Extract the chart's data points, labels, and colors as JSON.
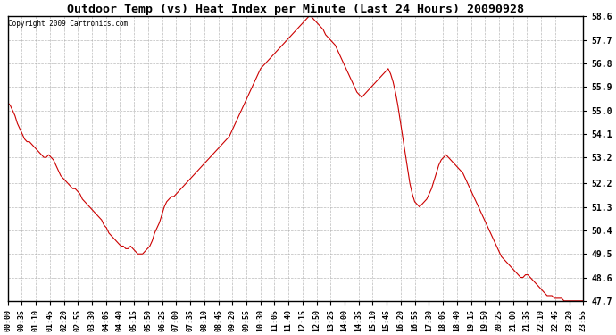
{
  "title": "Outdoor Temp (vs) Heat Index per Minute (Last 24 Hours) 20090928",
  "copyright": "Copyright 2009 Cartronics.com",
  "line_color": "#cc0000",
  "bg_color": "#ffffff",
  "grid_color": "#aaaaaa",
  "yticks": [
    47.7,
    48.6,
    49.5,
    50.4,
    51.3,
    52.2,
    53.2,
    54.1,
    55.0,
    55.9,
    56.8,
    57.7,
    58.6
  ],
  "ymin": 47.7,
  "ymax": 58.6,
  "xtick_labels": [
    "00:00",
    "00:35",
    "01:10",
    "01:45",
    "02:20",
    "02:55",
    "03:30",
    "04:05",
    "04:40",
    "05:15",
    "05:50",
    "06:25",
    "07:00",
    "07:35",
    "08:10",
    "08:45",
    "09:20",
    "09:55",
    "10:30",
    "11:05",
    "11:40",
    "12:15",
    "12:50",
    "13:25",
    "14:00",
    "14:35",
    "15:10",
    "15:45",
    "16:20",
    "16:55",
    "17:30",
    "18:05",
    "18:40",
    "19:15",
    "19:50",
    "20:25",
    "21:00",
    "21:35",
    "22:10",
    "22:45",
    "23:20",
    "23:55"
  ],
  "curve": [
    55.3,
    55.2,
    55.0,
    54.8,
    54.5,
    54.3,
    54.1,
    53.9,
    53.8,
    53.8,
    53.7,
    53.6,
    53.5,
    53.4,
    53.3,
    53.2,
    53.2,
    53.3,
    53.2,
    53.1,
    52.9,
    52.7,
    52.5,
    52.4,
    52.3,
    52.2,
    52.1,
    52.0,
    52.0,
    51.9,
    51.8,
    51.6,
    51.5,
    51.4,
    51.3,
    51.2,
    51.1,
    51.0,
    50.9,
    50.8,
    50.6,
    50.5,
    50.3,
    50.2,
    50.1,
    50.0,
    49.9,
    49.8,
    49.8,
    49.7,
    49.7,
    49.8,
    49.7,
    49.6,
    49.5,
    49.5,
    49.5,
    49.6,
    49.7,
    49.8,
    50.0,
    50.3,
    50.5,
    50.7,
    51.0,
    51.3,
    51.5,
    51.6,
    51.7,
    51.7,
    51.8,
    51.9,
    52.0,
    52.1,
    52.2,
    52.3,
    52.4,
    52.5,
    52.6,
    52.7,
    52.8,
    52.9,
    53.0,
    53.1,
    53.2,
    53.3,
    53.4,
    53.5,
    53.6,
    53.7,
    53.8,
    53.9,
    54.0,
    54.2,
    54.4,
    54.6,
    54.8,
    55.0,
    55.2,
    55.4,
    55.6,
    55.8,
    56.0,
    56.2,
    56.4,
    56.6,
    56.7,
    56.8,
    56.9,
    57.0,
    57.1,
    57.2,
    57.3,
    57.4,
    57.5,
    57.6,
    57.7,
    57.8,
    57.9,
    58.0,
    58.1,
    58.2,
    58.3,
    58.4,
    58.5,
    58.6,
    58.6,
    58.5,
    58.4,
    58.3,
    58.2,
    58.1,
    57.9,
    57.8,
    57.7,
    57.6,
    57.5,
    57.3,
    57.1,
    56.9,
    56.7,
    56.5,
    56.3,
    56.1,
    55.9,
    55.7,
    55.6,
    55.5,
    55.6,
    55.7,
    55.8,
    55.9,
    56.0,
    56.1,
    56.2,
    56.3,
    56.4,
    56.5,
    56.6,
    56.4,
    56.1,
    55.7,
    55.2,
    54.6,
    54.0,
    53.4,
    52.8,
    52.2,
    51.8,
    51.5,
    51.4,
    51.3,
    51.4,
    51.5,
    51.6,
    51.8,
    52.0,
    52.3,
    52.6,
    52.9,
    53.1,
    53.2,
    53.3,
    53.2,
    53.1,
    53.0,
    52.9,
    52.8,
    52.7,
    52.6,
    52.4,
    52.2,
    52.0,
    51.8,
    51.6,
    51.4,
    51.2,
    51.0,
    50.8,
    50.6,
    50.4,
    50.2,
    50.0,
    49.8,
    49.6,
    49.4,
    49.3,
    49.2,
    49.1,
    49.0,
    48.9,
    48.8,
    48.7,
    48.6,
    48.6,
    48.7,
    48.7,
    48.6,
    48.5,
    48.4,
    48.3,
    48.2,
    48.1,
    48.0,
    47.9,
    47.9,
    47.9,
    47.8,
    47.8,
    47.8,
    47.8,
    47.7,
    47.7,
    47.7,
    47.7,
    47.7,
    47.7,
    47.7,
    47.7,
    47.7
  ]
}
